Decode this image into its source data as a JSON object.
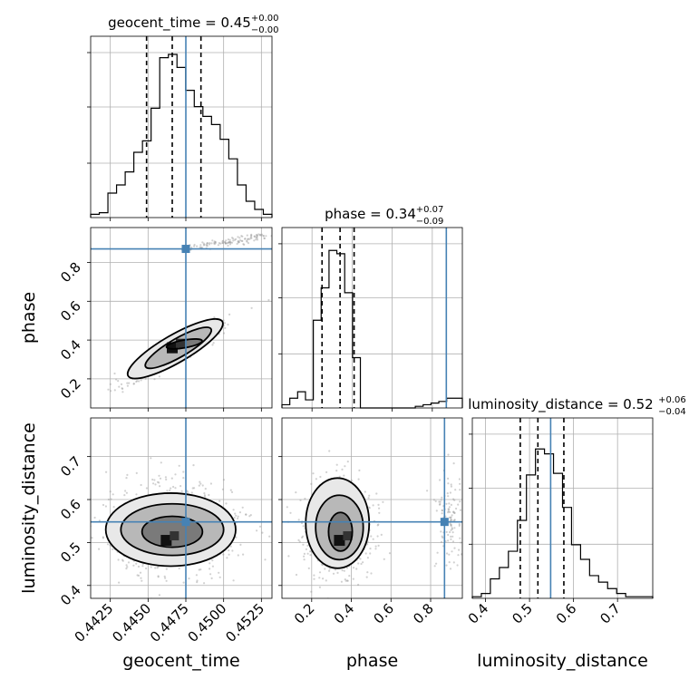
{
  "chart_data": {
    "type": "corner",
    "parameters": [
      "geocent_time",
      "phase",
      "luminosity_distance"
    ],
    "truths": [
      0.4475,
      0.87,
      0.548
    ],
    "truth_color": "#4682b4",
    "grid": true,
    "diagonal": [
      {
        "title": "geocent_time",
        "median": "0.45",
        "plus": "+0.00",
        "minus": "−0.00",
        "range": [
          0.4412,
          0.4532
        ],
        "bin_heights": [
          0.02,
          0.03,
          0.15,
          0.2,
          0.28,
          0.4,
          0.47,
          0.67,
          0.98,
          1.0,
          0.92,
          0.78,
          0.68,
          0.62,
          0.57,
          0.48,
          0.36,
          0.2,
          0.1,
          0.05,
          0.02
        ],
        "quantiles": [
          0.4449,
          0.4466,
          0.4485
        ]
      },
      {
        "title": "phase",
        "median": "0.34",
        "plus": "+0.07",
        "minus": "−0.09",
        "range": [
          0.05,
          0.95
        ],
        "bin_heights": [
          0.02,
          0.06,
          0.1,
          0.05,
          0.54,
          0.74,
          0.97,
          0.95,
          0.71,
          0.31,
          0.0,
          0.0,
          0.0,
          0.0,
          0.0,
          0.0,
          0.0,
          0.01,
          0.02,
          0.03,
          0.04,
          0.06,
          0.06
        ],
        "quantiles": [
          0.25,
          0.34,
          0.41
        ]
      },
      {
        "title": "luminosity_distance",
        "median": "0.52",
        "plus": "+0.06",
        "minus": "−0.04",
        "range": [
          0.37,
          0.78
        ],
        "bin_heights": [
          0.01,
          0.03,
          0.12,
          0.19,
          0.29,
          0.48,
          0.76,
          0.92,
          0.89,
          0.77,
          0.56,
          0.33,
          0.24,
          0.14,
          0.1,
          0.06,
          0.03,
          0.01,
          0.01,
          0.01
        ],
        "quantiles": [
          0.479,
          0.519,
          0.578
        ]
      }
    ],
    "pairs": [
      {
        "x": "geocent_time",
        "y": "phase",
        "xrange": [
          0.4412,
          0.4532
        ],
        "yrange": [
          0.05,
          0.98
        ],
        "peak": [
          0.4466,
          0.36
        ],
        "contours": [
          {
            "cx": 0.4468,
            "cy": 0.355,
            "rx": 0.0036,
            "ry": 0.072,
            "rot": -30
          },
          {
            "cx": 0.447,
            "cy": 0.36,
            "rx": 0.0025,
            "ry": 0.048,
            "rot": -30
          },
          {
            "cx": 0.4474,
            "cy": 0.38,
            "rx": 0.0012,
            "ry": 0.02,
            "rot": -10
          }
        ]
      },
      {
        "x": "geocent_time",
        "y": "luminosity_distance",
        "xrange": [
          0.4412,
          0.4532
        ],
        "yrange": [
          0.37,
          0.79
        ],
        "peak": [
          0.4462,
          0.505
        ],
        "contours": [
          {
            "cx": 0.4465,
            "cy": 0.53,
            "rx": 0.0043,
            "ry": 0.085,
            "rot": 0
          },
          {
            "cx": 0.4466,
            "cy": 0.53,
            "rx": 0.0034,
            "ry": 0.06,
            "rot": 0
          },
          {
            "cx": 0.4466,
            "cy": 0.525,
            "rx": 0.002,
            "ry": 0.036,
            "rot": 0
          }
        ]
      },
      {
        "x": "phase",
        "y": "luminosity_distance",
        "xrange": [
          0.05,
          0.96
        ],
        "yrange": [
          0.37,
          0.79
        ],
        "peak": [
          0.34,
          0.505
        ],
        "contours": [
          {
            "cx": 0.33,
            "cy": 0.545,
            "rx": 0.16,
            "ry": 0.105,
            "rot": 0
          },
          {
            "cx": 0.34,
            "cy": 0.535,
            "rx": 0.12,
            "ry": 0.075,
            "rot": 0
          },
          {
            "cx": 0.345,
            "cy": 0.525,
            "rx": 0.06,
            "ry": 0.045,
            "rot": 0
          }
        ]
      }
    ],
    "tick_labels": {
      "geocent_time_x": [
        "0.4425",
        "0.4450",
        "0.4475",
        "0.4500",
        "0.4525"
      ],
      "phase_x": [
        "0.2",
        "0.4",
        "0.6",
        "0.8"
      ],
      "luminosity_distance_x": [
        "0.4",
        "0.5",
        "0.6",
        "0.7"
      ],
      "phase_y": [
        "0.2",
        "0.4",
        "0.6",
        "0.8"
      ],
      "luminosity_distance_y": [
        "0.4",
        "0.5",
        "0.6",
        "0.7"
      ]
    },
    "xlabels": [
      "geocent_time",
      "phase",
      "luminosity_distance"
    ],
    "ylabels": [
      "phase",
      "luminosity_distance"
    ]
  }
}
